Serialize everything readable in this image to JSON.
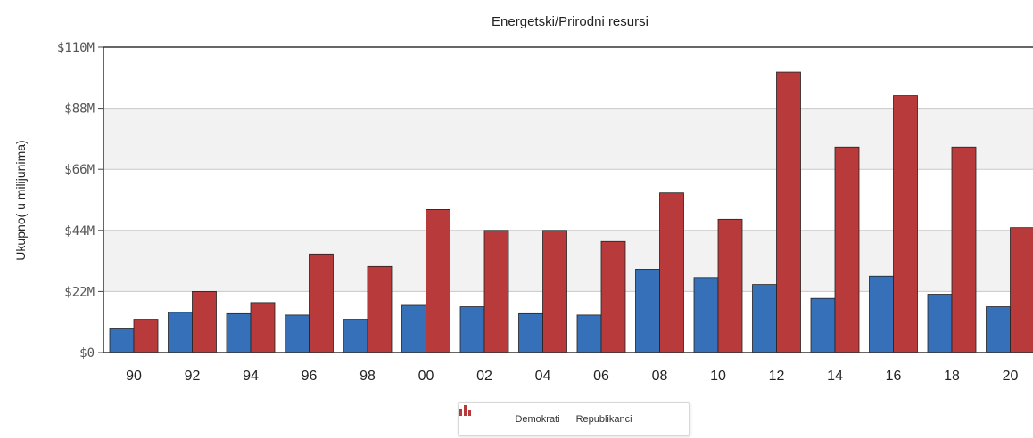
{
  "chart_data": {
    "type": "bar",
    "title": "Energetski/Prirodni resursi",
    "ylabel": "Ukupno( u milijunima)",
    "xlabel": "",
    "categories": [
      "90",
      "92",
      "94",
      "96",
      "98",
      "00",
      "02",
      "04",
      "06",
      "08",
      "10",
      "12",
      "14",
      "16",
      "18",
      "20"
    ],
    "series": [
      {
        "name": "Demokrati",
        "color": "#3670b8",
        "values": [
          8.5,
          14.5,
          14,
          13.5,
          12,
          17,
          16.5,
          14,
          13.5,
          30,
          27,
          24.5,
          19.5,
          27.5,
          21,
          16.5
        ]
      },
      {
        "name": "Republikanci",
        "color": "#b83a3a",
        "values": [
          12,
          22,
          18,
          35.5,
          31,
          51.5,
          44,
          44,
          40,
          57.5,
          48,
          101,
          74,
          92.5,
          74,
          45
        ]
      }
    ],
    "ylim": [
      0,
      110
    ],
    "yticks": [
      {
        "value": 0,
        "label": "$0"
      },
      {
        "value": 22,
        "label": "$22M"
      },
      {
        "value": 44,
        "label": "$44M"
      },
      {
        "value": 66,
        "label": "$66M"
      },
      {
        "value": 88,
        "label": "$88M"
      },
      {
        "value": 110,
        "label": "$110M"
      }
    ],
    "grid": true,
    "legend_position": "bottom"
  }
}
